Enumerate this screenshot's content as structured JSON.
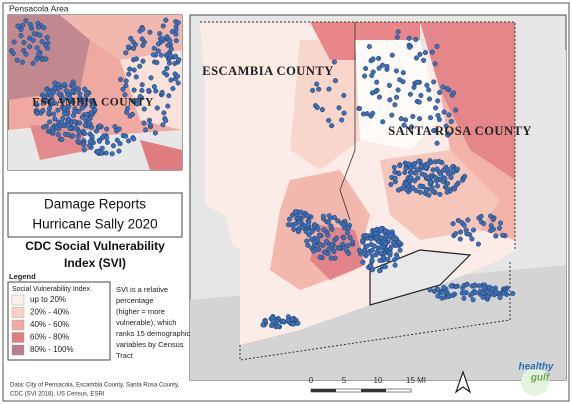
{
  "inset": {
    "title": "Pensacola Area",
    "county_label": "ESCAMBIA COUNTY"
  },
  "main_map": {
    "labels": [
      "ESCAMBIA COUNTY",
      "SANTA ROSA COUNTY"
    ],
    "scale": [
      "0",
      "5",
      "10",
      "15 MI"
    ]
  },
  "title_box": {
    "lines": [
      "Damage Reports",
      "Hurricane Sally 2020"
    ]
  },
  "svi_title": {
    "lines": [
      "CDC Social Vulnerability",
      "Index (SVI)"
    ]
  },
  "legend": {
    "heading": "Legend",
    "title": "Social Vulnerability Index",
    "items": [
      {
        "label": "up to 20%",
        "color": "#fcefeb"
      },
      {
        "label": "20% - 40%",
        "color": "#f8d1c4"
      },
      {
        "label": "40% - 60%",
        "color": "#f0aa9f"
      },
      {
        "label": "60% - 80%",
        "color": "#e07d81"
      },
      {
        "label": "80% - 100%",
        "color": "#b97f8f"
      }
    ]
  },
  "note": {
    "lines": [
      "SVI is a relative",
      "percentage",
      "(higher = more",
      "vulnerable), which",
      "ranks 15 demographic",
      "variables by Census",
      "Tract"
    ]
  },
  "sources": {
    "lines": [
      "Data: City of Pensacola, Escambia County, Santa Rosa County,",
      "CDC (SVI 2018), US Census, ESRI"
    ]
  },
  "logo": {
    "lines": [
      "healthy",
      "gulf"
    ]
  }
}
